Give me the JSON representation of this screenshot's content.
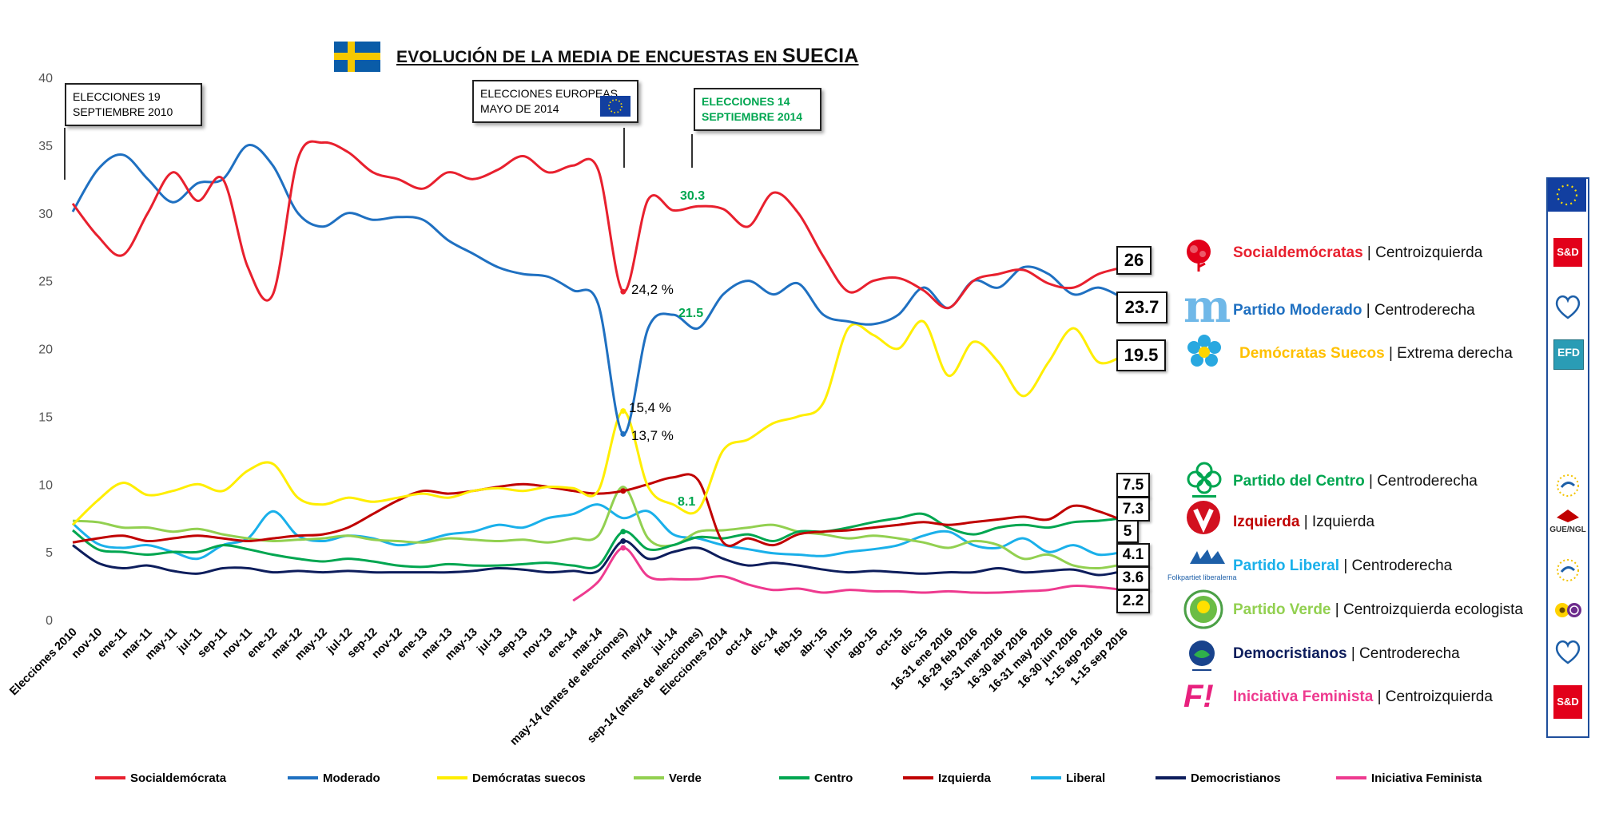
{
  "title": {
    "main": "EVOLUCIÓN DE LA MEDIA DE ENCUESTAS EN",
    "country": "SUECIA"
  },
  "annotations": {
    "box1": [
      "ELECCIONES 19",
      "SEPTIEMBRE 2010"
    ],
    "box2": [
      "ELECCIONES EUROPEAS",
      "MAYO DE 2014"
    ],
    "box3": [
      "ELECCIONES 14",
      "SEPTIEMBRE 2014"
    ],
    "pct_s": "24,2 %",
    "pct_sd": "15,4 %",
    "pct_m": "13,7 %",
    "val_s_2014": "30.3",
    "val_m_2014": "21.5",
    "val_sd_2014": "8.1"
  },
  "colors": {
    "S": "#e8202e",
    "M": "#1f70c1",
    "SD": "#ffee00",
    "MP": "#92d050",
    "C": "#00a650",
    "V": "#c00000",
    "L": "#1ab0ea",
    "KD": "#0d1d5c",
    "FI": "#ee3a8f"
  },
  "parties": [
    {
      "key": "S",
      "name": "Socialdemócratas",
      "ideology": "Centroizquierda",
      "value": "26",
      "name_color": "#e8202e",
      "group": "S&D",
      "logo": "rose-icon"
    },
    {
      "key": "M",
      "name": "Partido Moderado",
      "ideology": "Centroderecha",
      "value": "23.7",
      "name_color": "#1f70c1",
      "group": "EPP",
      "logo": "moderaterna-icon"
    },
    {
      "key": "SD",
      "name": "Demócratas Suecos",
      "ideology": "Extrema derecha",
      "value": "19.5",
      "name_color": "#ffc000",
      "group": "EFD",
      "logo": "flower-icon"
    },
    {
      "key": "C",
      "name": "Partido del Centro",
      "ideology": "Centroderecha",
      "value": "7.5",
      "name_color": "#00a650",
      "group": "ALDE",
      "logo": "clover-icon"
    },
    {
      "key": "V",
      "name": "Izquierda",
      "ideology": "Izquierda",
      "value": "7.3",
      "name_color": "#c00000",
      "group": "GUE/NGL",
      "logo": "v-icon"
    },
    {
      "key": "L",
      "name": "Partido Liberal",
      "ideology": "Centroderecha",
      "value": "5",
      "name_color": "#1ab0ea",
      "group": "ALDE",
      "logo": "liberal-icon",
      "logo_text": "Folkpartiet liberalerna"
    },
    {
      "key": "MP",
      "name": "Partido Verde",
      "ideology": "Centroizquierda ecologista",
      "value": "4.1",
      "name_color": "#92d050",
      "group": "Greens/EFA",
      "logo": "sunflower-icon"
    },
    {
      "key": "KD",
      "name": "Democristianos",
      "ideology": "Centroderecha",
      "value": "3.6",
      "name_color": "#0d1d5c",
      "group": "EPP",
      "logo": "kd-icon"
    },
    {
      "key": "FI",
      "name": "Iniciativa Feminista",
      "ideology": "Centroizquierda",
      "value": "2.2",
      "name_color": "#ee3a8f",
      "group": "S&D",
      "logo": "fi-icon",
      "logo_text": "F!"
    }
  ],
  "group_labels": {
    "sd": "S&D",
    "gue": "GUE/NGL",
    "efd": "EFD"
  },
  "chart_data": {
    "type": "line",
    "ylim": [
      0,
      40
    ],
    "yticks": [
      "0",
      "5",
      "10",
      "15",
      "20",
      "25",
      "30",
      "35",
      "40"
    ],
    "xticks": [
      "Elecciones 2010",
      "nov-10",
      "ene-11",
      "mar-11",
      "may-11",
      "jul-11",
      "sep-11",
      "nov-11",
      "ene-12",
      "mar-12",
      "may-12",
      "jul-12",
      "sep-12",
      "nov-12",
      "ene-13",
      "mar-13",
      "may-13",
      "jul-13",
      "sep-13",
      "nov-13",
      "ene-14",
      "mar-14",
      "may-14 (antes de elecciones)",
      "may/14",
      "jul-14",
      "sep-14 (antes de elecciones)",
      "Elecciones 2014",
      "oct-14",
      "dic-14",
      "feb-15",
      "abr-15",
      "jun-15",
      "ago-15",
      "oct-15",
      "dic-15",
      "16-31 ene 2016",
      "16-29 feb 2016",
      "16-31 mar 2016",
      "16-30 abr 2016",
      "16-31 may 2016",
      "16-30 jun 2016",
      "1-15 ago 2016",
      "1-15 sep 2016"
    ],
    "series": [
      {
        "name": "Socialdemócrata",
        "key": "S",
        "values": [
          30.7,
          28.3,
          26.9,
          30.0,
          33.0,
          30.9,
          32.5,
          26.0,
          24.0,
          34.0,
          35.2,
          34.5,
          33.0,
          32.5,
          31.8,
          33.0,
          32.5,
          33.2,
          34.2,
          33.0,
          33.5,
          33.2,
          24.2,
          31.0,
          30.2,
          30.5,
          30.3,
          29.0,
          31.5,
          30.0,
          26.8,
          24.2,
          25.0,
          25.2,
          24.3,
          23.0,
          25.0,
          25.5,
          25.8,
          24.8,
          24.5,
          25.5,
          26.0
        ]
      },
      {
        "name": "Moderado",
        "key": "M",
        "values": [
          30.1,
          33.2,
          34.3,
          32.5,
          30.8,
          32.2,
          32.5,
          35.0,
          33.5,
          30.0,
          29.0,
          30.0,
          29.5,
          29.7,
          29.5,
          28.0,
          27.0,
          26.0,
          25.5,
          25.3,
          24.3,
          23.3,
          13.7,
          21.5,
          22.5,
          21.5,
          24.0,
          25.0,
          24.0,
          24.8,
          22.5,
          22.0,
          21.8,
          22.5,
          24.5,
          23.0,
          25.0,
          24.5,
          26.0,
          25.5,
          24.0,
          24.5,
          23.7
        ]
      },
      {
        "name": "Demócratas suecos",
        "key": "SD",
        "values": [
          7.0,
          8.8,
          10.1,
          9.2,
          9.5,
          10.0,
          9.5,
          11.0,
          11.5,
          9.0,
          8.5,
          9.0,
          8.7,
          9.0,
          9.3,
          9.0,
          9.5,
          9.7,
          9.5,
          9.8,
          9.7,
          9.5,
          15.4,
          9.8,
          8.5,
          8.1,
          12.5,
          13.3,
          14.5,
          15.0,
          16.0,
          21.5,
          21.0,
          20.0,
          22.0,
          18.0,
          20.5,
          19.0,
          16.5,
          19.0,
          21.5,
          19.0,
          19.5
        ]
      },
      {
        "name": "Verde",
        "key": "MP",
        "values": [
          7.3,
          7.2,
          6.8,
          6.8,
          6.5,
          6.7,
          6.3,
          6.0,
          5.8,
          5.9,
          6.0,
          6.2,
          5.9,
          5.8,
          5.7,
          6.0,
          5.9,
          5.8,
          5.9,
          5.7,
          6.0,
          6.2,
          9.8,
          6.0,
          5.5,
          6.5,
          6.6,
          6.8,
          7.0,
          6.5,
          6.3,
          6.0,
          6.2,
          6.0,
          5.7,
          5.3,
          5.8,
          5.5,
          4.5,
          4.8,
          4.0,
          3.8,
          4.1
        ]
      },
      {
        "name": "Centro",
        "key": "C",
        "values": [
          6.6,
          5.2,
          5.0,
          4.8,
          5.0,
          5.0,
          5.5,
          5.2,
          4.8,
          4.5,
          4.3,
          4.5,
          4.3,
          4.0,
          3.9,
          4.1,
          4.0,
          4.0,
          4.1,
          4.2,
          4.0,
          4.0,
          6.5,
          5.2,
          5.5,
          6.1,
          6.0,
          6.3,
          5.8,
          6.5,
          6.5,
          6.8,
          7.2,
          7.5,
          7.8,
          6.8,
          6.3,
          6.8,
          7.0,
          6.8,
          7.2,
          7.3,
          7.5
        ]
      },
      {
        "name": "Izquierda",
        "key": "V",
        "values": [
          5.7,
          6.0,
          6.2,
          5.8,
          6.0,
          6.2,
          6.0,
          5.8,
          6.0,
          6.2,
          6.3,
          6.8,
          7.8,
          8.8,
          9.5,
          9.3,
          9.5,
          9.8,
          10.0,
          9.8,
          9.5,
          9.3,
          9.5,
          10.0,
          10.5,
          10.3,
          5.7,
          6.0,
          5.5,
          6.3,
          6.5,
          6.6,
          6.8,
          7.0,
          7.2,
          7.0,
          7.2,
          7.4,
          7.6,
          7.4,
          8.4,
          8.0,
          7.3
        ]
      },
      {
        "name": "Liberal",
        "key": "L",
        "values": [
          7.1,
          5.6,
          5.3,
          5.5,
          5.0,
          4.5,
          5.5,
          6.0,
          8.0,
          6.2,
          5.8,
          6.2,
          6.0,
          5.5,
          5.8,
          6.3,
          6.5,
          7.0,
          6.8,
          7.5,
          7.8,
          8.5,
          7.5,
          8.0,
          6.3,
          6.0,
          5.5,
          5.2,
          4.9,
          4.8,
          4.7,
          5.0,
          5.2,
          5.5,
          6.2,
          6.5,
          5.5,
          5.3,
          6.0,
          5.0,
          5.5,
          4.8,
          5.0
        ]
      },
      {
        "name": "Democristianos",
        "key": "KD",
        "values": [
          5.5,
          4.2,
          3.8,
          4.0,
          3.6,
          3.4,
          3.8,
          3.8,
          3.5,
          3.6,
          3.5,
          3.6,
          3.5,
          3.5,
          3.5,
          3.5,
          3.6,
          3.8,
          3.7,
          3.5,
          3.6,
          3.6,
          5.8,
          4.5,
          5.0,
          5.3,
          4.5,
          4.0,
          4.2,
          4.0,
          3.7,
          3.5,
          3.6,
          3.5,
          3.4,
          3.5,
          3.5,
          3.8,
          3.5,
          3.6,
          3.7,
          3.3,
          3.6
        ]
      },
      {
        "name": "Iniciativa Feminista",
        "key": "FI",
        "values": [
          null,
          null,
          null,
          null,
          null,
          null,
          null,
          null,
          null,
          null,
          null,
          null,
          null,
          null,
          null,
          null,
          null,
          null,
          null,
          null,
          1.4,
          2.8,
          5.3,
          3.2,
          3.0,
          3.0,
          3.2,
          2.6,
          2.2,
          2.3,
          2.0,
          2.2,
          2.1,
          2.1,
          2.0,
          2.1,
          2.0,
          2.0,
          2.1,
          2.2,
          2.5,
          2.4,
          2.2
        ]
      }
    ]
  }
}
